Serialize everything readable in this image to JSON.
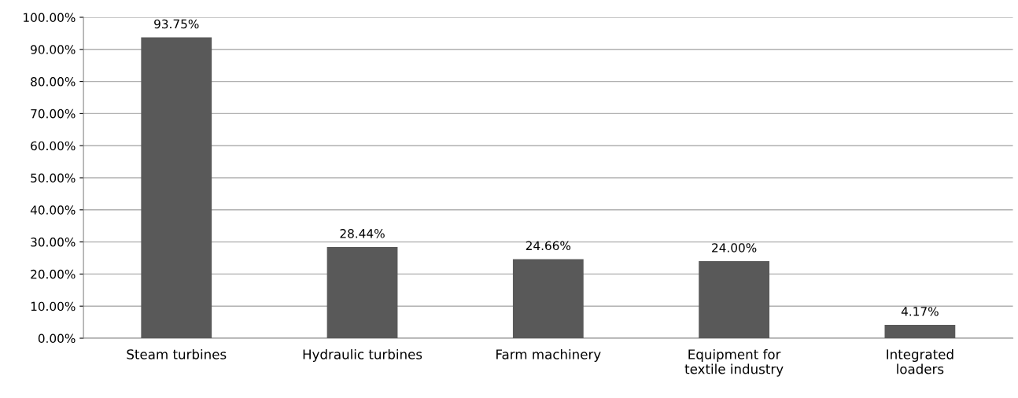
{
  "chart_data": {
    "type": "bar",
    "categories": [
      "Steam turbines",
      "Hydraulic turbines",
      "Farm machinery",
      "Equipment for\ntextile industry",
      "Integrated\nloaders"
    ],
    "values": [
      93.75,
      28.44,
      24.66,
      24.0,
      4.17
    ],
    "value_labels": [
      "93.75%",
      "28.44%",
      "24.66%",
      "24.00%",
      "4.17%"
    ],
    "color": "#595959",
    "ylim": [
      0,
      100
    ],
    "yticks": [
      {
        "value": 0,
        "label": "0.00%"
      },
      {
        "value": 10,
        "label": "10.00%"
      },
      {
        "value": 20,
        "label": "20.00%"
      },
      {
        "value": 30,
        "label": "30.00%"
      },
      {
        "value": 40,
        "label": "40.00%"
      },
      {
        "value": 50,
        "label": "50.00%"
      },
      {
        "value": 60,
        "label": "60.00%"
      },
      {
        "value": 70,
        "label": "70.00%"
      },
      {
        "value": 80,
        "label": "80.00%"
      },
      {
        "value": 90,
        "label": "90.00%"
      },
      {
        "value": 100,
        "label": "100.00%"
      }
    ],
    "grid": "y"
  }
}
